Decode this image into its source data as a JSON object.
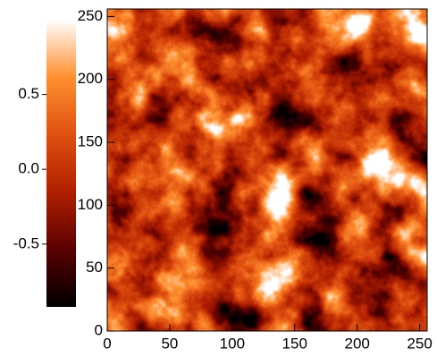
{
  "chart_data": {
    "type": "heatmap",
    "xlim": [
      0,
      256
    ],
    "ylim": [
      0,
      256
    ],
    "xticks": [
      0,
      50,
      100,
      150,
      200,
      250
    ],
    "yticks": [
      0,
      50,
      100,
      150,
      200,
      250
    ],
    "colorbar": {
      "clim": [
        -0.92,
        1.0
      ],
      "ticks": [
        -0.5,
        {
          "value": 0,
          "label": "0.0"
        },
        0.5
      ],
      "colormap": [
        "#000000",
        "#5a0000",
        "#b02000",
        "#e05010",
        "#ff9030",
        "#ffffff"
      ]
    }
  }
}
